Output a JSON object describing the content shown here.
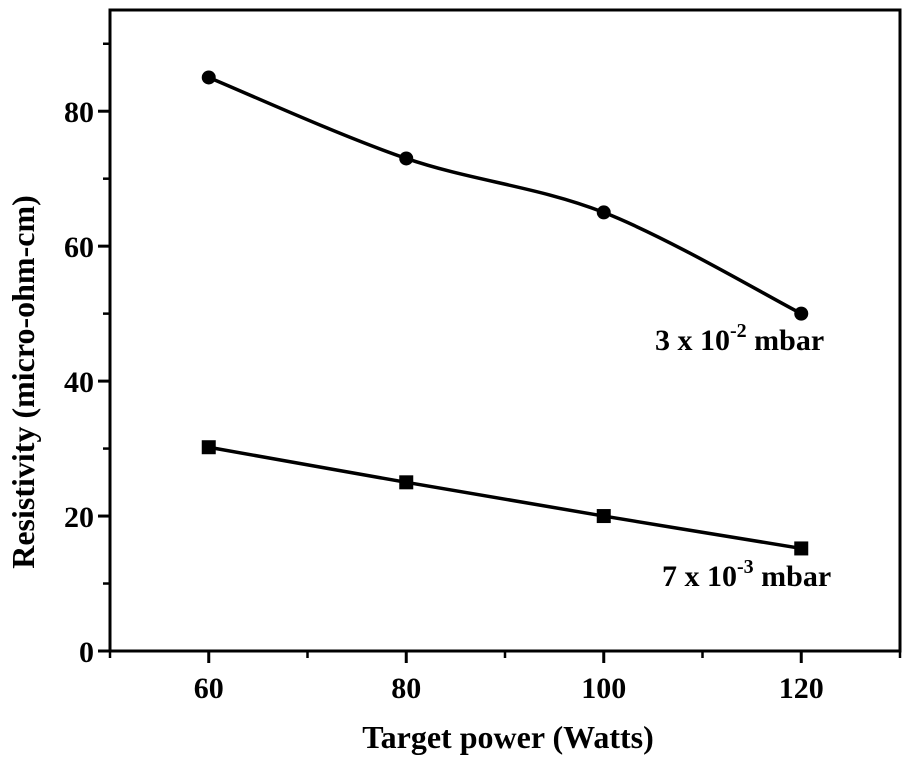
{
  "chart_data": {
    "type": "line",
    "xlabel": "Target power (Watts)",
    "ylabel": "Resistivity (micro-ohm-cm)",
    "xlim": [
      50,
      130
    ],
    "ylim": [
      0,
      95
    ],
    "x_ticks": [
      60,
      80,
      100,
      120
    ],
    "y_ticks": [
      0,
      20,
      40,
      60,
      80
    ],
    "grid": false,
    "series": [
      {
        "label_base": "3 x 10",
        "label_exp": "-2",
        "label_unit": " mbar",
        "marker": "circle",
        "x": [
          60,
          80,
          100,
          120
        ],
        "values": [
          85,
          73,
          65,
          50
        ]
      },
      {
        "label_base": "7 x 10",
        "label_exp": "-3",
        "label_unit": " mbar",
        "marker": "square",
        "x": [
          60,
          80,
          100,
          120
        ],
        "values": [
          30.2,
          25,
          20,
          15.2
        ]
      }
    ]
  }
}
